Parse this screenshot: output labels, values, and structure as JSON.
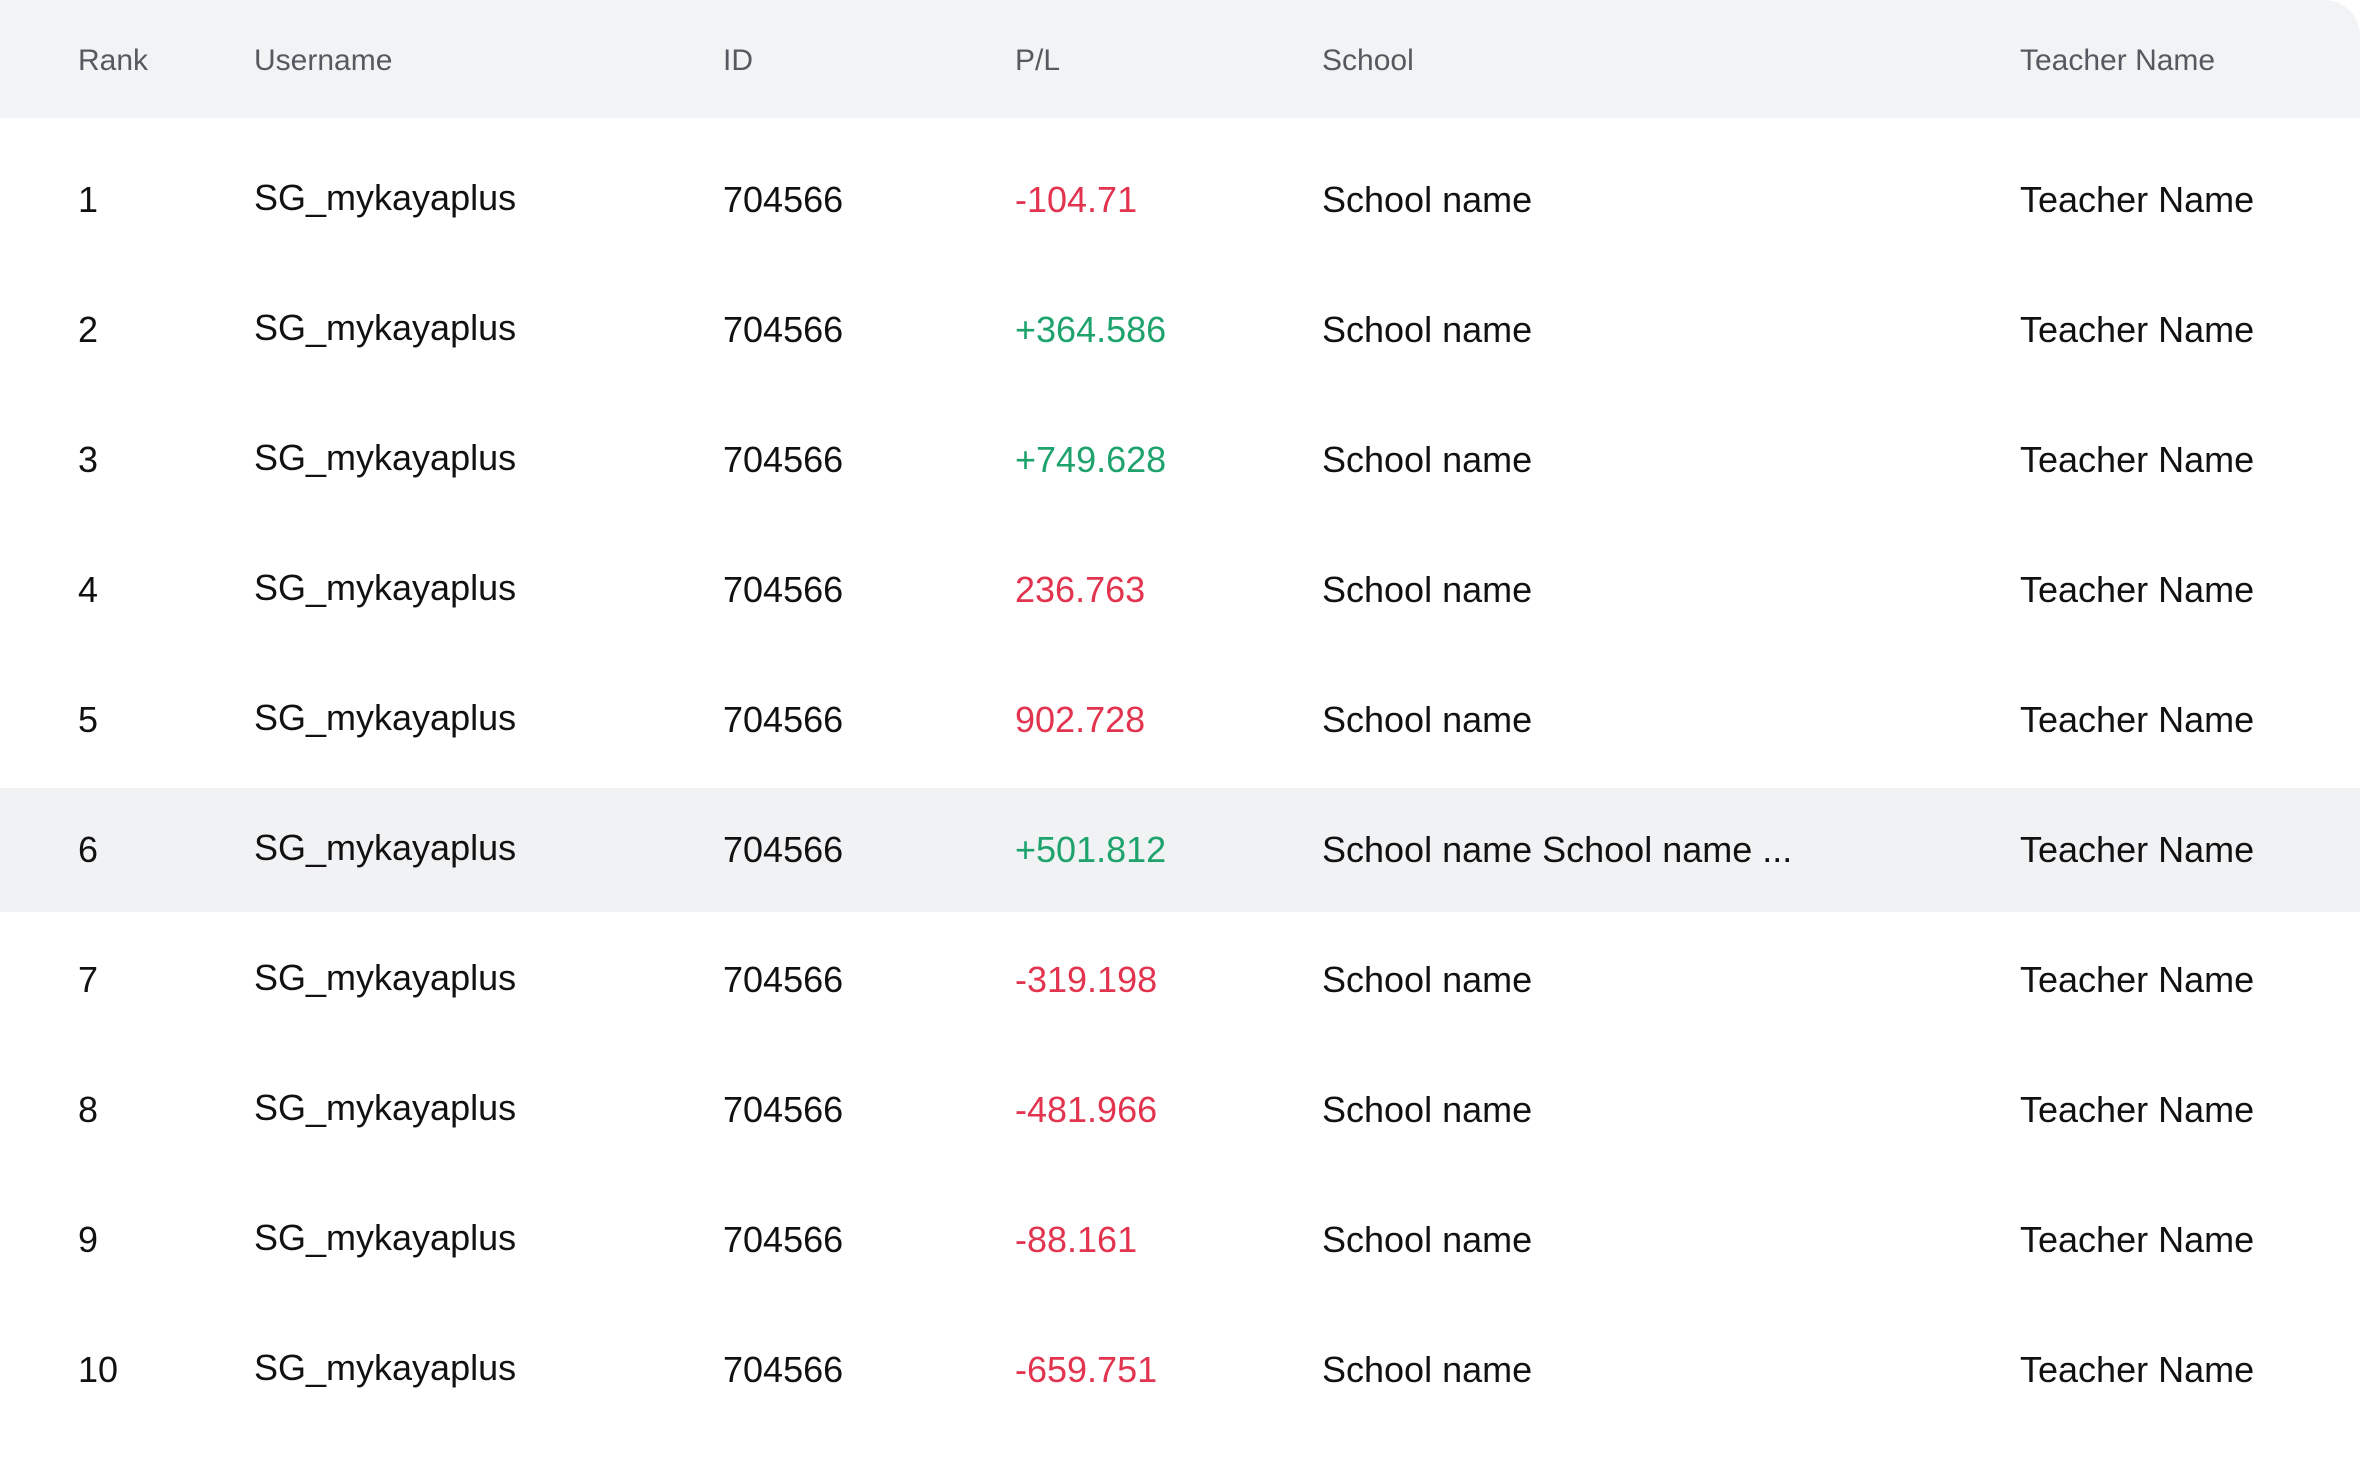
{
  "table": {
    "headers": {
      "rank": "Rank",
      "username": "Username",
      "id": "ID",
      "pl": "P/L",
      "school": "School",
      "teacher": "Teacher Name"
    },
    "rows": [
      {
        "rank": "1",
        "username": "SG_mykayaplus",
        "id": "704566",
        "pl": "-104.71",
        "pl_sign": "neg",
        "school": "School name",
        "teacher": "Teacher Name"
      },
      {
        "rank": "2",
        "username": "SG_mykayaplus",
        "id": "704566",
        "pl": "+364.586",
        "pl_sign": "pos",
        "school": "School name",
        "teacher": "Teacher Name"
      },
      {
        "rank": "3",
        "username": "SG_mykayaplus",
        "id": "704566",
        "pl": "+749.628",
        "pl_sign": "pos",
        "school": "School name",
        "teacher": "Teacher Name"
      },
      {
        "rank": "4",
        "username": "SG_mykayaplus",
        "id": "704566",
        "pl": "236.763",
        "pl_sign": "neg",
        "school": "School name",
        "teacher": "Teacher Name"
      },
      {
        "rank": "5",
        "username": "SG_mykayaplus",
        "id": "704566",
        "pl": "902.728",
        "pl_sign": "neg",
        "school": "School name",
        "teacher": "Teacher Name"
      },
      {
        "rank": "6",
        "username": "SG_mykayaplus",
        "id": "704566",
        "pl": "+501.812",
        "pl_sign": "pos",
        "school": "School name School name ...",
        "teacher": "Teacher Name",
        "highlighted": true
      },
      {
        "rank": "7",
        "username": "SG_mykayaplus",
        "id": "704566",
        "pl": "-319.198",
        "pl_sign": "neg",
        "school": "School name",
        "teacher": "Teacher Name"
      },
      {
        "rank": "8",
        "username": "SG_mykayaplus",
        "id": "704566",
        "pl": "-481.966",
        "pl_sign": "neg",
        "school": "School name",
        "teacher": "Teacher Name"
      },
      {
        "rank": "9",
        "username": "SG_mykayaplus",
        "id": "704566",
        "pl": "-88.161",
        "pl_sign": "neg",
        "school": "School name",
        "teacher": "Teacher Name"
      },
      {
        "rank": "10",
        "username": "SG_mykayaplus",
        "id": "704566",
        "pl": "-659.751",
        "pl_sign": "neg",
        "school": "School name",
        "teacher": "Teacher Name"
      }
    ]
  },
  "colors": {
    "header_background": "#f2f3f5",
    "highlight_row_background": "#f1f2f4",
    "negative_pl": "#e2344f",
    "positive_pl": "#1fa36d",
    "header_text": "#555a60",
    "body_text": "#111111"
  }
}
